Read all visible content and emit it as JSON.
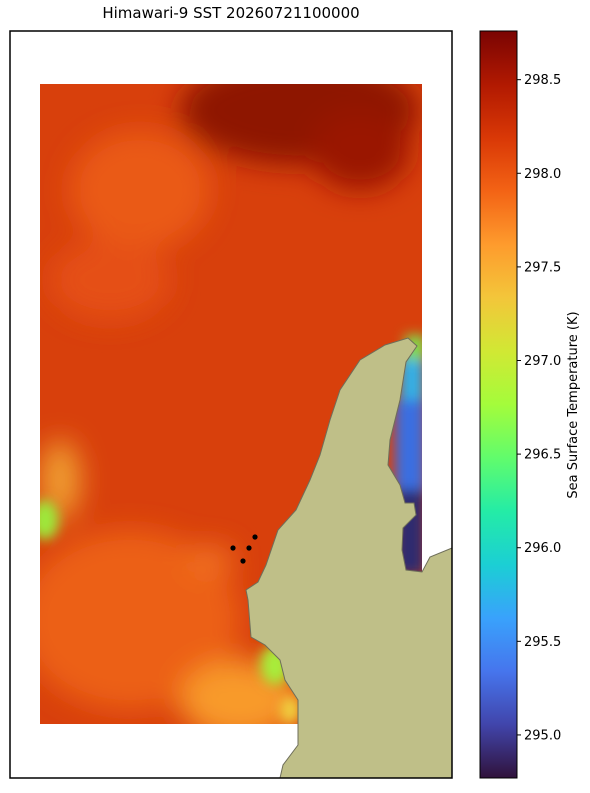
{
  "chart_data": {
    "type": "heatmap",
    "title": "Himawari-9 SST 20260721100000",
    "colorbar_label": "Sea Surface Temperature (K)",
    "colormap": "turbo",
    "clim": [
      294.77,
      298.76
    ],
    "cticks": [
      {
        "value": 295,
        "label": "295.0"
      },
      {
        "value": 295.5,
        "label": "295.5"
      },
      {
        "value": 296,
        "label": "296.0"
      },
      {
        "value": 296.5,
        "label": "296.5"
      },
      {
        "value": 297,
        "label": "297.0"
      },
      {
        "value": 297.5,
        "label": "297.5"
      },
      {
        "value": 298,
        "label": "298.0"
      },
      {
        "value": 298.5,
        "label": "298.5"
      }
    ]
  }
}
